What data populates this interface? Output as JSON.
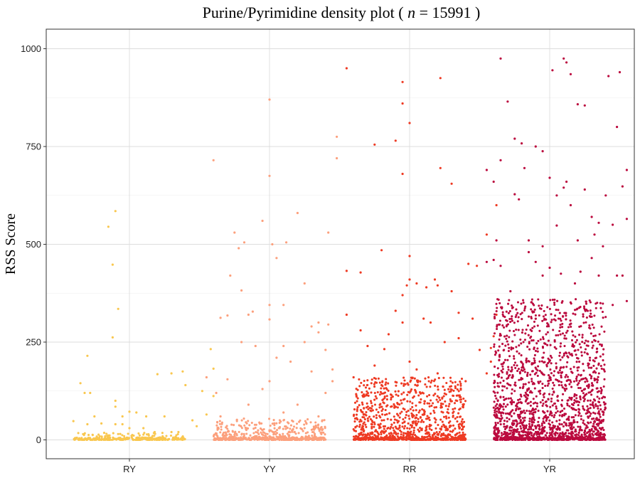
{
  "chart_data": {
    "type": "scatter",
    "title_prefix": "Purine/Pyrimidine density plot ( ",
    "title_n_symbol": "n",
    "title_suffix": " = 15991 )",
    "n": 15991,
    "xlabel": "",
    "ylabel": "RSS Score",
    "categories": [
      "RY",
      "YY",
      "RR",
      "YR"
    ],
    "yticks": [
      0,
      250,
      500,
      750,
      1000
    ],
    "ylim": [
      -50,
      1050
    ],
    "grid": true,
    "jitter": true,
    "series": [
      {
        "category": "RY",
        "color": "#F9C74F",
        "outliers": [
          [
            -0.4,
            48
          ],
          [
            -0.35,
            145
          ],
          [
            -0.32,
            120
          ],
          [
            -0.3,
            215
          ],
          [
            -0.28,
            120
          ],
          [
            -0.25,
            60
          ],
          [
            -0.2,
            42
          ],
          [
            -0.15,
            545
          ],
          [
            -0.12,
            448
          ],
          [
            -0.1,
            585
          ],
          [
            -0.12,
            262
          ],
          [
            -0.08,
            335
          ],
          [
            -0.1,
            85
          ],
          [
            -0.05,
            40
          ],
          [
            -0.1,
            100
          ],
          [
            -0.1,
            40
          ],
          [
            -0.05,
            60
          ],
          [
            0.0,
            72
          ],
          [
            0.0,
            30
          ],
          [
            0.05,
            70
          ],
          [
            0.1,
            30
          ],
          [
            0.12,
            60
          ],
          [
            0.18,
            20
          ],
          [
            0.2,
            168
          ],
          [
            0.25,
            60
          ],
          [
            0.3,
            170
          ],
          [
            0.38,
            175
          ],
          [
            0.4,
            140
          ],
          [
            0.35,
            20
          ],
          [
            0.45,
            50
          ],
          [
            0.52,
            125
          ],
          [
            0.58,
            232
          ],
          [
            0.6,
            182
          ],
          [
            0.6,
            112
          ],
          [
            0.55,
            65
          ],
          [
            0.48,
            35
          ],
          [
            -0.3,
            40
          ],
          [
            0.3,
            20
          ],
          [
            -0.18,
            18
          ]
        ],
        "dense": {
          "count": 170,
          "max": 18,
          "skew": 3
        }
      },
      {
        "category": "YY",
        "color": "#FCA07D",
        "outliers": [
          [
            -0.4,
            715
          ],
          [
            -0.35,
            312
          ],
          [
            -0.3,
            318
          ],
          [
            -0.28,
            420
          ],
          [
            -0.25,
            530
          ],
          [
            -0.22,
            490
          ],
          [
            -0.18,
            505
          ],
          [
            -0.2,
            382
          ],
          [
            -0.15,
            320
          ],
          [
            -0.12,
            328
          ],
          [
            -0.05,
            560
          ],
          [
            0.0,
            308
          ],
          [
            0.0,
            675
          ],
          [
            0.0,
            870
          ],
          [
            0.02,
            500
          ],
          [
            0.05,
            465
          ],
          [
            0.1,
            345
          ],
          [
            0.12,
            505
          ],
          [
            0.0,
            345
          ],
          [
            0.2,
            580
          ],
          [
            0.25,
            400
          ],
          [
            0.35,
            275
          ],
          [
            0.3,
            290
          ],
          [
            0.35,
            300
          ],
          [
            0.4,
            230
          ],
          [
            0.42,
            530
          ],
          [
            0.48,
            775
          ],
          [
            0.48,
            720
          ],
          [
            0.42,
            295
          ],
          [
            0.45,
            150
          ],
          [
            -0.45,
            160
          ],
          [
            -0.38,
            120
          ],
          [
            -0.3,
            155
          ],
          [
            -0.2,
            250
          ],
          [
            -0.1,
            240
          ],
          [
            0.05,
            210
          ],
          [
            0.1,
            240
          ],
          [
            0.15,
            200
          ],
          [
            0.25,
            250
          ],
          [
            0.3,
            175
          ],
          [
            0.45,
            180
          ],
          [
            0.4,
            120
          ],
          [
            -0.35,
            60
          ],
          [
            0.0,
            150
          ],
          [
            0.2,
            90
          ],
          [
            -0.15,
            90
          ],
          [
            0.35,
            60
          ],
          [
            -0.05,
            130
          ],
          [
            0.1,
            70
          ]
        ],
        "dense": {
          "count": 440,
          "max": 55,
          "skew": 2.4
        }
      },
      {
        "category": "RR",
        "color": "#EE3A23",
        "outliers": [
          [
            -0.45,
            950
          ],
          [
            -0.45,
            432
          ],
          [
            -0.45,
            320
          ],
          [
            -0.35,
            428
          ],
          [
            -0.25,
            755
          ],
          [
            -0.2,
            485
          ],
          [
            -0.18,
            232
          ],
          [
            -0.1,
            765
          ],
          [
            -0.1,
            330
          ],
          [
            -0.05,
            370
          ],
          [
            -0.02,
            395
          ],
          [
            0.0,
            410
          ],
          [
            -0.05,
            915
          ],
          [
            -0.05,
            860
          ],
          [
            0.0,
            810
          ],
          [
            -0.05,
            680
          ],
          [
            0.0,
            470
          ],
          [
            0.05,
            400
          ],
          [
            0.12,
            390
          ],
          [
            0.18,
            410
          ],
          [
            0.2,
            395
          ],
          [
            0.22,
            925
          ],
          [
            0.22,
            695
          ],
          [
            0.3,
            655
          ],
          [
            0.3,
            380
          ],
          [
            0.35,
            325
          ],
          [
            0.42,
            450
          ],
          [
            0.48,
            445
          ],
          [
            0.55,
            525
          ],
          [
            0.62,
            600
          ],
          [
            0.62,
            320
          ],
          [
            0.6,
            265
          ],
          [
            -0.35,
            280
          ],
          [
            -0.3,
            240
          ],
          [
            -0.25,
            190
          ],
          [
            -0.15,
            270
          ],
          [
            -0.05,
            300
          ],
          [
            0.05,
            180
          ],
          [
            0.1,
            310
          ],
          [
            0.15,
            300
          ],
          [
            0.25,
            250
          ],
          [
            0.35,
            260
          ],
          [
            0.45,
            310
          ],
          [
            0.5,
            230
          ],
          [
            0.55,
            170
          ],
          [
            -0.4,
            160
          ],
          [
            -0.2,
            140
          ],
          [
            0.0,
            200
          ],
          [
            0.2,
            170
          ],
          [
            0.4,
            150
          ],
          [
            0.58,
            235
          ],
          [
            0.58,
            200
          ]
        ],
        "dense": {
          "count": 900,
          "max": 160,
          "skew": 2.3
        }
      },
      {
        "category": "YR",
        "color": "#BB0A3E",
        "outliers": [
          [
            -0.45,
            690
          ],
          [
            -0.4,
            660
          ],
          [
            -0.35,
            975
          ],
          [
            -0.3,
            865
          ],
          [
            -0.25,
            770
          ],
          [
            -0.2,
            758
          ],
          [
            -0.35,
            715
          ],
          [
            -0.22,
            615
          ],
          [
            -0.25,
            628
          ],
          [
            -0.18,
            695
          ],
          [
            -0.1,
            750
          ],
          [
            -0.05,
            738
          ],
          [
            0.0,
            670
          ],
          [
            -0.15,
            510
          ],
          [
            -0.05,
            495
          ],
          [
            0.02,
            945
          ],
          [
            0.05,
            625
          ],
          [
            0.1,
            975
          ],
          [
            0.12,
            965
          ],
          [
            0.15,
            935
          ],
          [
            0.1,
            645
          ],
          [
            0.12,
            660
          ],
          [
            0.15,
            600
          ],
          [
            0.2,
            858
          ],
          [
            0.25,
            855
          ],
          [
            0.25,
            640
          ],
          [
            0.3,
            570
          ],
          [
            0.35,
            555
          ],
          [
            0.4,
            625
          ],
          [
            0.42,
            930
          ],
          [
            0.48,
            800
          ],
          [
            0.5,
            940
          ],
          [
            0.52,
            648
          ],
          [
            0.55,
            690
          ],
          [
            0.55,
            565
          ],
          [
            0.48,
            420
          ],
          [
            0.38,
            495
          ],
          [
            0.45,
            550
          ],
          [
            0.32,
            525
          ],
          [
            0.3,
            465
          ],
          [
            0.2,
            510
          ],
          [
            0.22,
            430
          ],
          [
            0.05,
            548
          ],
          [
            0.0,
            440
          ],
          [
            -0.05,
            420
          ],
          [
            -0.1,
            455
          ],
          [
            -0.15,
            480
          ],
          [
            -0.35,
            445
          ],
          [
            -0.38,
            510
          ],
          [
            -0.45,
            455
          ],
          [
            -0.4,
            460
          ],
          [
            -0.28,
            380
          ],
          [
            0.08,
            425
          ],
          [
            0.18,
            400
          ],
          [
            0.35,
            420
          ],
          [
            0.52,
            420
          ],
          [
            0.55,
            355
          ],
          [
            0.45,
            345
          ]
        ],
        "dense": {
          "count": 1700,
          "max": 360,
          "skew": 2.1
        }
      }
    ]
  }
}
